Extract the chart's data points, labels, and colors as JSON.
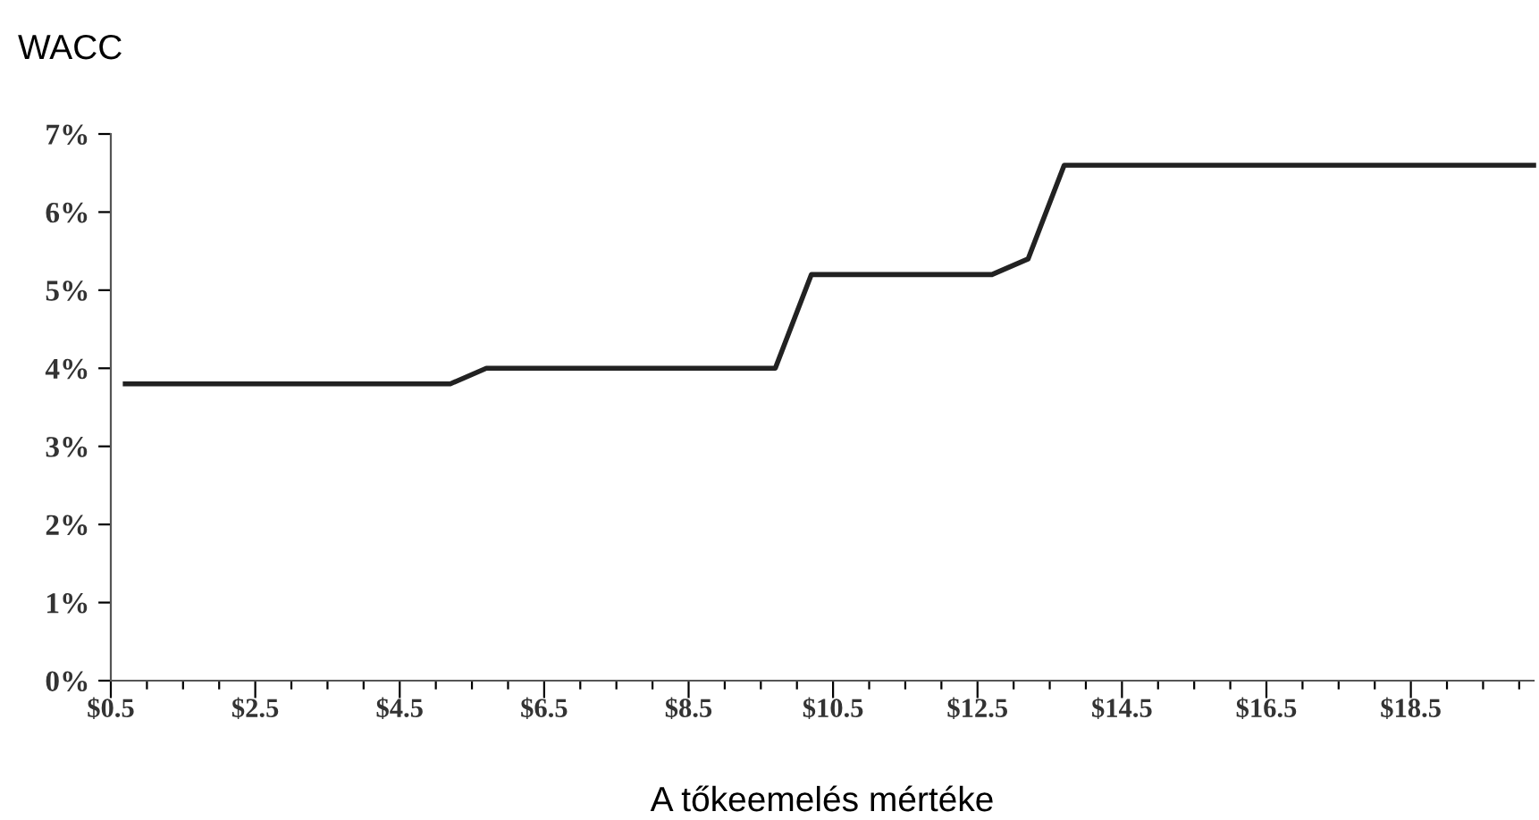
{
  "chart_data": {
    "type": "line",
    "ylabel": "WACC",
    "xlabel": "A tőkeemelés mértéke",
    "x": [
      0.7,
      5.2,
      5.7,
      9.7,
      10.2,
      12.7,
      13.2,
      13.7,
      20.2
    ],
    "series": [
      {
        "color": "#222222",
        "values": [
          3.8,
          3.8,
          4.0,
          4.0,
          5.2,
          5.2,
          5.4,
          6.6,
          6.6
        ]
      }
    ],
    "xlim": [
      0.5,
      20.2
    ],
    "ylim": [
      0,
      7
    ],
    "xticks": [
      {
        "value": 0.5,
        "label": "$0.5"
      },
      {
        "value": 1.0,
        "label": null
      },
      {
        "value": 1.5,
        "label": null
      },
      {
        "value": 2.0,
        "label": null
      },
      {
        "value": 2.5,
        "label": "$2.5"
      },
      {
        "value": 3.0,
        "label": null
      },
      {
        "value": 3.5,
        "label": null
      },
      {
        "value": 4.0,
        "label": null
      },
      {
        "value": 4.5,
        "label": "$4.5"
      },
      {
        "value": 5.0,
        "label": null
      },
      {
        "value": 5.5,
        "label": null
      },
      {
        "value": 6.0,
        "label": null
      },
      {
        "value": 6.5,
        "label": "$6.5"
      },
      {
        "value": 7.0,
        "label": null
      },
      {
        "value": 7.5,
        "label": null
      },
      {
        "value": 8.0,
        "label": null
      },
      {
        "value": 8.5,
        "label": "$8.5"
      },
      {
        "value": 9.0,
        "label": null
      },
      {
        "value": 9.5,
        "label": null
      },
      {
        "value": 10.0,
        "label": null
      },
      {
        "value": 10.5,
        "label": "$10.5"
      },
      {
        "value": 11.0,
        "label": null
      },
      {
        "value": 11.5,
        "label": null
      },
      {
        "value": 12.0,
        "label": null
      },
      {
        "value": 12.5,
        "label": "$12.5"
      },
      {
        "value": 13.0,
        "label": null
      },
      {
        "value": 13.5,
        "label": null
      },
      {
        "value": 14.0,
        "label": null
      },
      {
        "value": 14.5,
        "label": "$14.5"
      },
      {
        "value": 15.0,
        "label": null
      },
      {
        "value": 15.5,
        "label": null
      },
      {
        "value": 16.0,
        "label": null
      },
      {
        "value": 16.5,
        "label": "$16.5"
      },
      {
        "value": 17.0,
        "label": null
      },
      {
        "value": 17.5,
        "label": null
      },
      {
        "value": 18.0,
        "label": null
      },
      {
        "value": 18.5,
        "label": "$18.5"
      },
      {
        "value": 19.0,
        "label": null
      },
      {
        "value": 19.5,
        "label": null
      },
      {
        "value": 20.0,
        "label": null
      }
    ],
    "yticks": [
      {
        "value": 0,
        "label": "0%"
      },
      {
        "value": 1,
        "label": "1%"
      },
      {
        "value": 2,
        "label": "2%"
      },
      {
        "value": 3,
        "label": "3%"
      },
      {
        "value": 4,
        "label": "4%"
      },
      {
        "value": 5,
        "label": "5%"
      },
      {
        "value": 6,
        "label": "6%"
      },
      {
        "value": 7,
        "label": "7%"
      }
    ],
    "grid": false,
    "legend": false,
    "marker": "none",
    "line_style": "solid"
  }
}
